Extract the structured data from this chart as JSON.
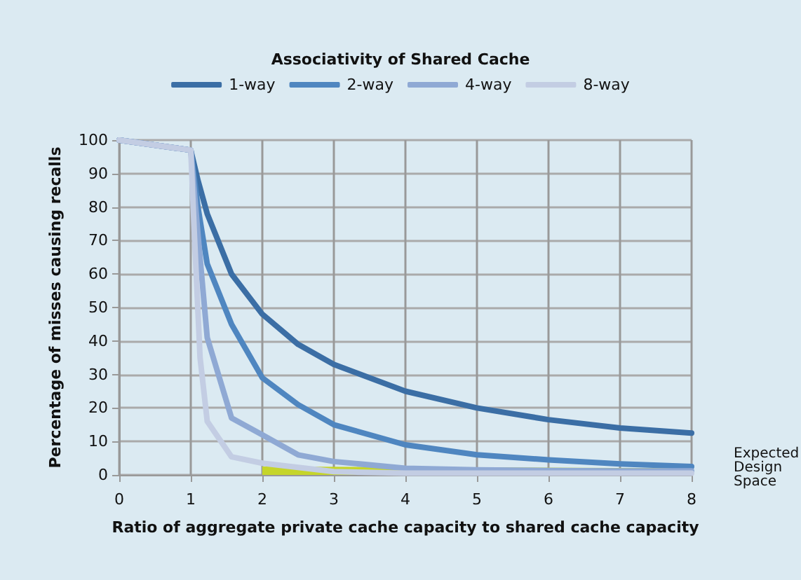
{
  "chart_data": {
    "type": "line",
    "xlabel": "Ratio of aggregate private cache capacity to shared cache capacity",
    "ylabel": "Percentage of misses causing recalls",
    "legend_title": "Associativity of Shared Cache",
    "x": [
      0,
      1,
      1.1,
      1.23,
      1.57,
      2,
      2.5,
      3,
      4,
      5,
      6,
      7,
      8
    ],
    "series": [
      {
        "name": "1-way",
        "color": "#3b6ea5",
        "values": [
          100,
          97,
          88,
          78,
          60,
          48,
          39,
          33,
          25,
          20,
          16.5,
          14,
          12.5
        ]
      },
      {
        "name": "2-way",
        "color": "#4f86c0",
        "values": [
          100,
          97,
          80,
          63,
          45,
          29,
          21,
          15,
          9,
          6,
          4.5,
          3.3,
          2.5
        ]
      },
      {
        "name": "4-way",
        "color": "#8fa9d4",
        "values": [
          100,
          97,
          72,
          41,
          17,
          12,
          6,
          4,
          2,
          1.5,
          1.3,
          1.2,
          1.2
        ]
      },
      {
        "name": "8-way",
        "color": "#c3cde3",
        "x": [
          0,
          1,
          1.05,
          1.13,
          1.23,
          1.57,
          2,
          3,
          4,
          8
        ],
        "values": [
          100,
          97,
          72,
          35,
          16,
          5.4,
          3.5,
          1,
          0.5,
          0.5
        ]
      },
      {
        "name": "Expected Design Space",
        "type": "area",
        "color": "#c5d52a",
        "x": [
          2,
          8
        ],
        "values": [
          2.5,
          2
        ]
      }
    ],
    "xlim": [
      0,
      8
    ],
    "xticks": [
      0,
      1,
      2,
      3,
      4,
      5,
      6,
      7,
      8
    ],
    "ylim": [
      0,
      100
    ],
    "yticks": [
      0,
      10,
      20,
      30,
      40,
      50,
      60,
      70,
      80,
      90,
      100
    ],
    "grid": true,
    "legend": "top",
    "marker": "none",
    "line_style": "solid"
  }
}
